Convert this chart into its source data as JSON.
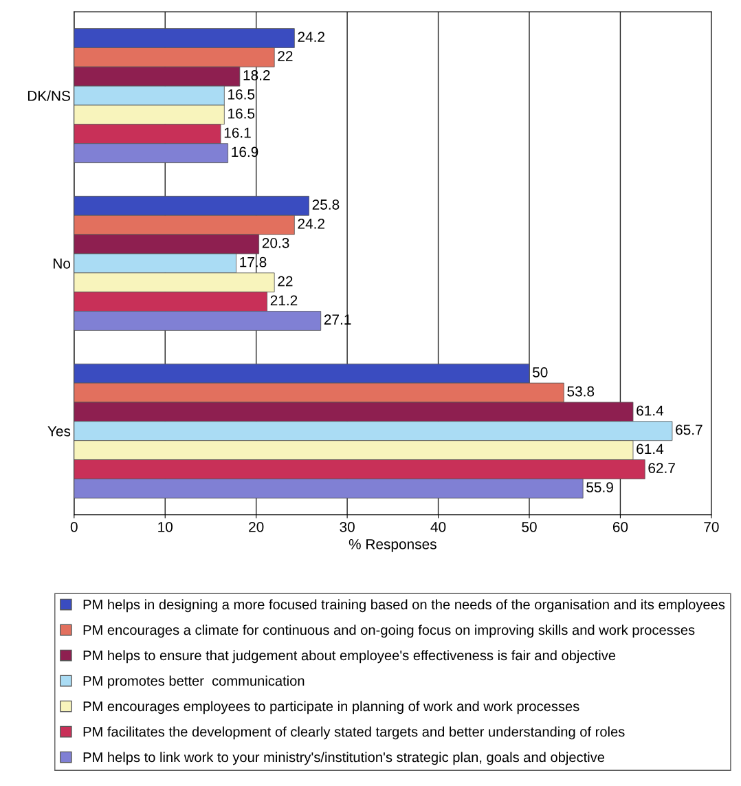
{
  "chart_data": {
    "type": "bar",
    "orientation": "horizontal",
    "xlabel": "% Responses",
    "categories": [
      "DK/NS",
      "No",
      "Yes"
    ],
    "series": [
      {
        "name": "PM helps in designing a more focused training based on the needs of the organisation and its employees",
        "color": "#3a4cc0",
        "values": [
          24.2,
          25.8,
          50
        ]
      },
      {
        "name": "PM encourages a climate for continuous and on-going focus on improving skills and work processes",
        "color": "#e2705e",
        "values": [
          22,
          24.2,
          53.8
        ]
      },
      {
        "name": "PM helps to ensure that judgement about employee's effectiveness is fair and objective",
        "color": "#8e1f50",
        "values": [
          18.2,
          20.3,
          61.4
        ]
      },
      {
        "name": "PM promotes better  communication",
        "color": "#aadcf4",
        "values": [
          16.5,
          17.8,
          65.7
        ]
      },
      {
        "name": "PM encourages employees to participate in planning of work and work processes",
        "color": "#f8f4bc",
        "values": [
          16.5,
          22,
          61.4
        ]
      },
      {
        "name": "PM facilitates the development of clearly stated targets and better understanding of roles",
        "color": "#c83058",
        "values": [
          16.1,
          21.2,
          62.7
        ]
      },
      {
        "name": "PM helps to link work to your ministry's/institution's strategic plan, goals and objective",
        "color": "#8080d4",
        "values": [
          16.9,
          27.1,
          55.9
        ]
      }
    ],
    "xlim": [
      0,
      70
    ],
    "xticks": [
      0,
      10,
      20,
      30,
      40,
      50,
      60,
      70
    ],
    "grid": "x",
    "legend": "bottom",
    "data_labels": true
  }
}
